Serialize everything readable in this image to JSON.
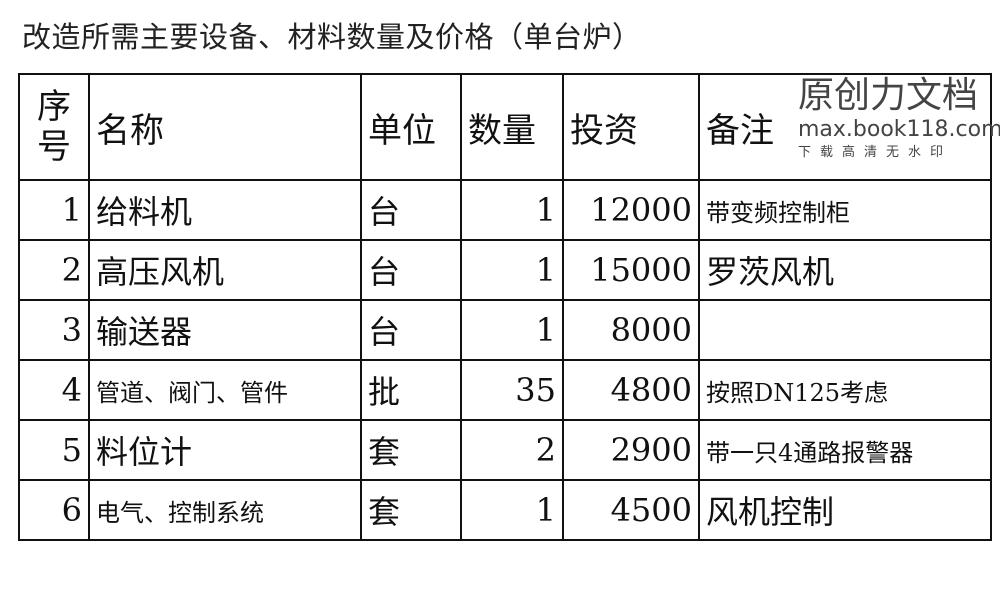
{
  "title": "改造所需主要设备、材料数量及价格（单台炉）",
  "headers": {
    "seq_line1": "序",
    "seq_line2": "号",
    "name": "名称",
    "unit": "单位",
    "qty": "数量",
    "invest": "投资",
    "note": "备注"
  },
  "rows": [
    {
      "seq": "1",
      "name": "给料机",
      "unit": "台",
      "qty": "1",
      "invest": "12000",
      "note": "带变频控制柜"
    },
    {
      "seq": "2",
      "name": "高压风机",
      "unit": "台",
      "qty": "1",
      "invest": "15000",
      "note": "罗茨风机"
    },
    {
      "seq": "3",
      "name": "输送器",
      "unit": "台",
      "qty": "1",
      "invest": "8000",
      "note": ""
    },
    {
      "seq": "4",
      "name": "管道、阀门、管件",
      "unit": "批",
      "qty": "35",
      "invest": "4800",
      "note": "按照DN125考虑"
    },
    {
      "seq": "5",
      "name": "料位计",
      "unit": "套",
      "qty": "2",
      "invest": "2900",
      "note": "带一只4通路报警器"
    },
    {
      "seq": "6",
      "name": "电气、控制系统",
      "unit": "套",
      "qty": "1",
      "invest": "4500",
      "note": "风机控制"
    }
  ],
  "watermark": {
    "line1": "原创力文档",
    "line2": "max.book118.com",
    "line3": "下载高清无水印"
  }
}
